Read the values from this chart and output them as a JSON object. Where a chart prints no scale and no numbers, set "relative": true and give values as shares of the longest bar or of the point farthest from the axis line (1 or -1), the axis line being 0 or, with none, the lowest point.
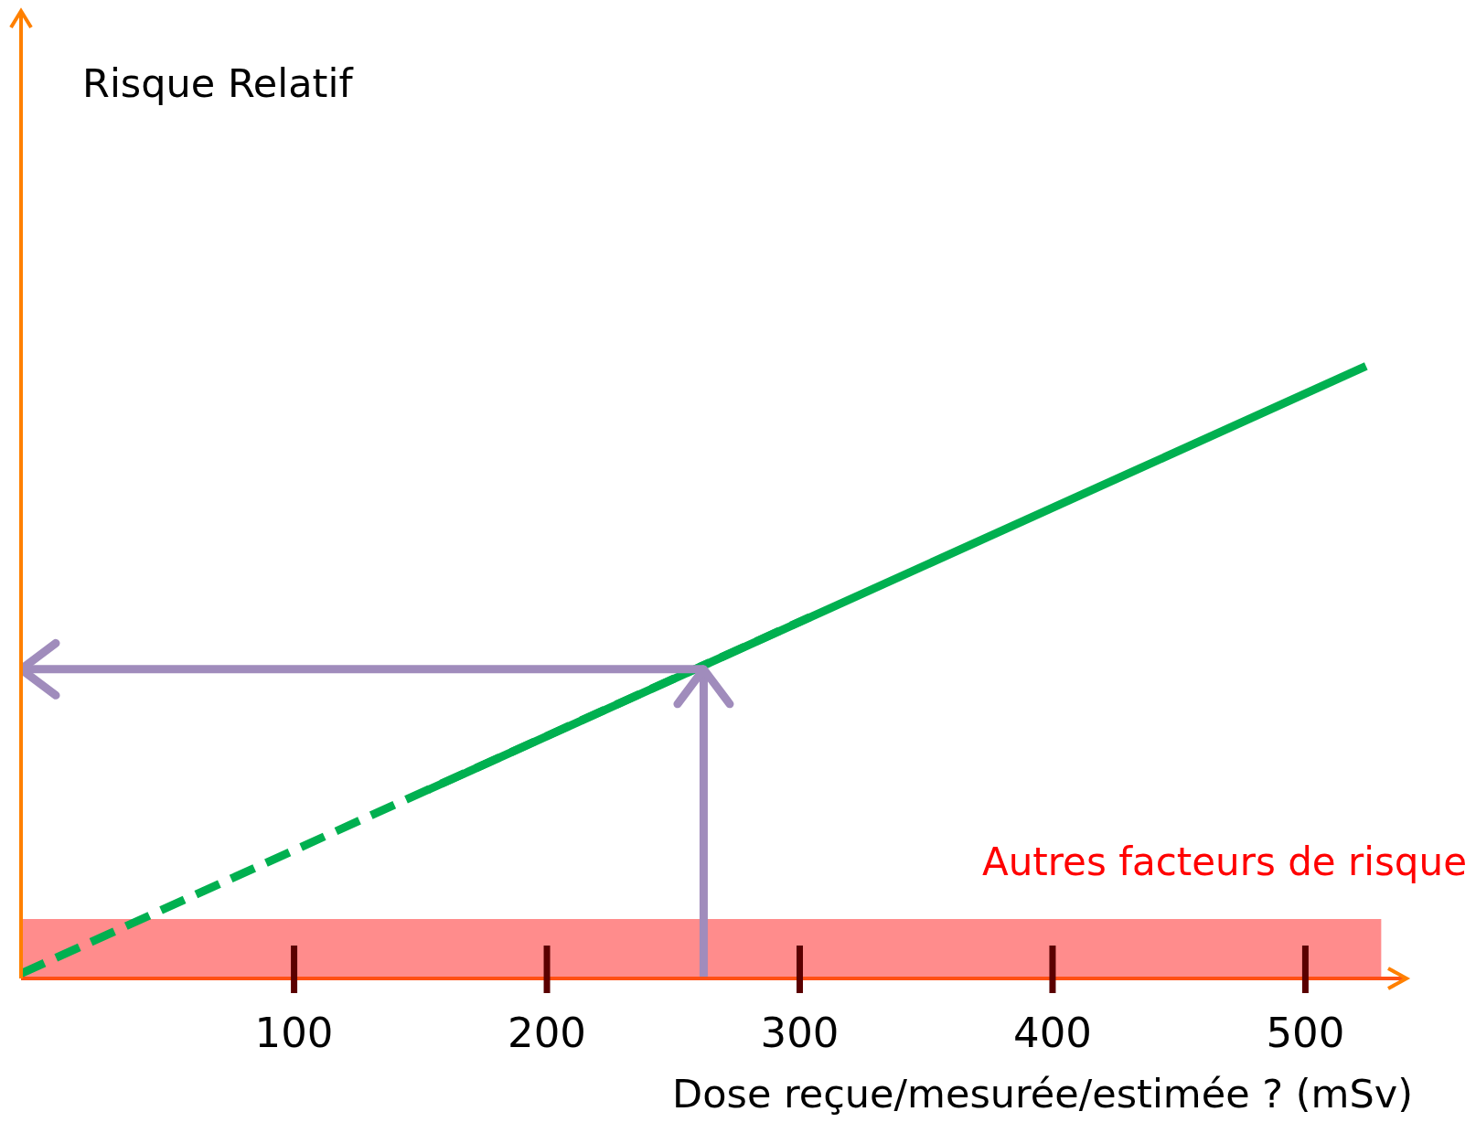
{
  "chart_data": {
    "type": "line",
    "relative": true,
    "annotations": [
      "Risque Relatif"
    ],
    "xlabel": "Dose reçue/mesurée/estimée ? (mSv)",
    "xlim": [
      -8,
      540
    ],
    "xticks": [
      100,
      200,
      300,
      400,
      500
    ],
    "series": [
      {
        "color": "#00b050",
        "x": [
          -8,
          304
        ],
        "values": [
          0.008,
          0.59
        ],
        "line_style": "dashed",
        "marker": "none"
      },
      {
        "color": "#00b050",
        "x": [
          153,
          524
        ],
        "values": [
          0.308,
          1
        ],
        "line_style": "solid",
        "marker": "none"
      },
      {
        "color": "#a08cbc",
        "x": [
          262,
          262
        ],
        "values": [
          0,
          0.505
        ],
        "line_style": "solid"
      },
      {
        "color": "#a08cbc",
        "x": [
          262,
          -8
        ],
        "values": [
          0.505,
          0.505
        ],
        "line_style": "solid"
      }
    ],
    "bands": [
      {
        "axis": "y",
        "from": 0,
        "to": 0.097,
        "label": "Autres facteurs de risque",
        "color": "#ff8c8c"
      }
    ]
  }
}
